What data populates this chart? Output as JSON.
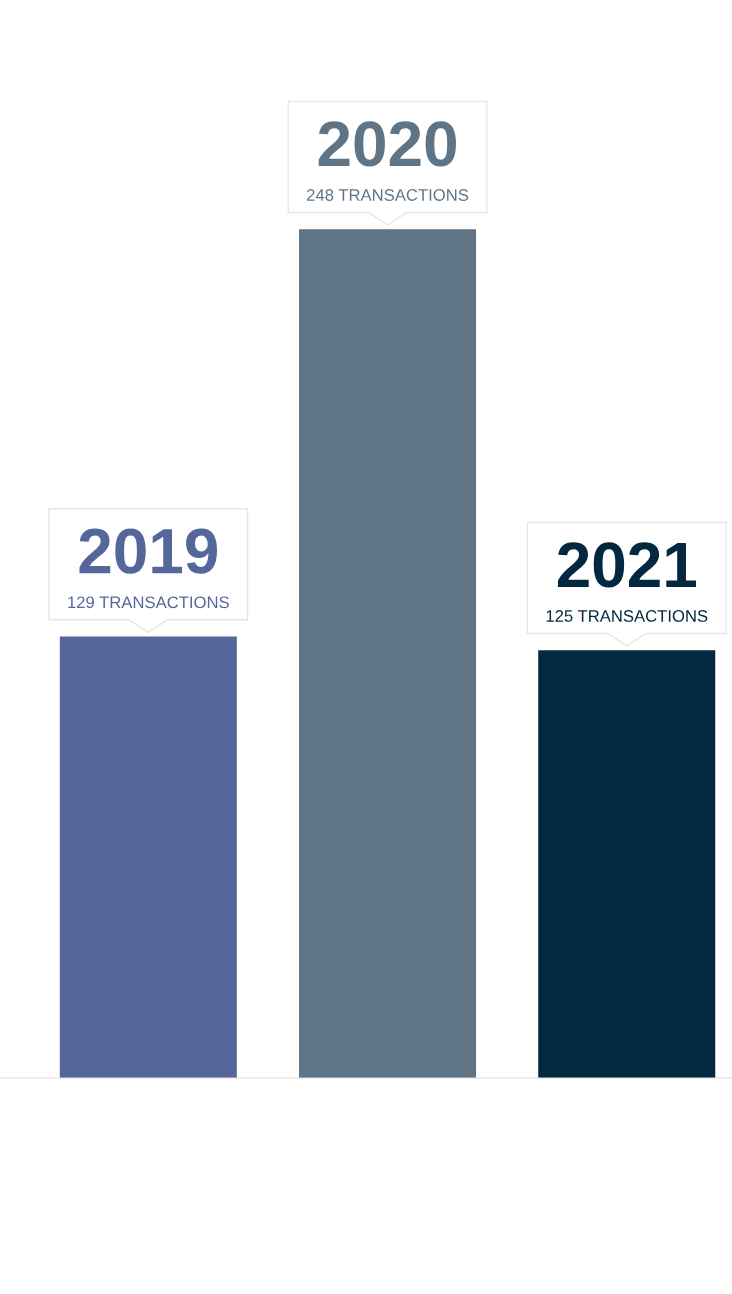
{
  "chart_data": {
    "type": "bar",
    "categories": [
      "2019",
      "2020",
      "2021"
    ],
    "values": [
      129,
      248,
      125
    ],
    "colors": [
      "#55679a",
      "#5f7585",
      "#03283f"
    ],
    "value_labels": [
      "129 TRANSACTIONS",
      "248 TRANSACTIONS",
      "125 TRANSACTIONS"
    ],
    "tick_labels": false
  }
}
